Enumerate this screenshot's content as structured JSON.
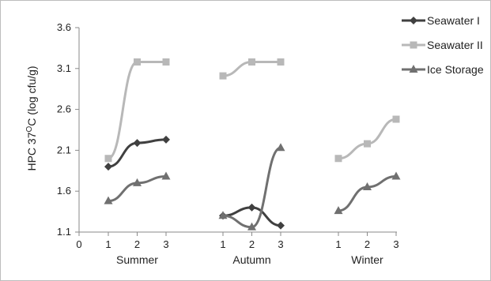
{
  "chart_data": {
    "type": "line",
    "ylabel": "HPC 37",
    "ylabel_sup": "O",
    "ylabel_tail": "C (log cfu/g)",
    "ylim": [
      1.1,
      3.6
    ],
    "y_ticks": [
      "3.6",
      "3.1",
      "2.6",
      "2.1",
      "1.6",
      "1.1"
    ],
    "x_zero_label": "0",
    "groups": [
      {
        "name": "Summer",
        "ticks": [
          "1",
          "2",
          "3"
        ]
      },
      {
        "name": "Autumn",
        "ticks": [
          "1",
          "2",
          "3"
        ]
      },
      {
        "name": "Winter",
        "ticks": [
          "1",
          "2",
          "3"
        ]
      }
    ],
    "legend_position": "top-right",
    "grid": false,
    "series": [
      {
        "name": "Seawater I",
        "color": "#404040",
        "marker": "diamond",
        "groups": [
          [
            1.9,
            2.19,
            2.23
          ],
          [
            1.3,
            1.4,
            1.18
          ],
          []
        ]
      },
      {
        "name": "Seawater II",
        "color": "#b8b8b8",
        "marker": "square",
        "groups": [
          [
            2.0,
            3.18,
            3.18
          ],
          [
            3.01,
            3.18,
            3.18
          ],
          [
            2.0,
            2.18,
            2.48
          ]
        ]
      },
      {
        "name": "Ice Storage",
        "color": "#707070",
        "marker": "triangle",
        "groups": [
          [
            1.48,
            1.7,
            1.78
          ],
          [
            1.3,
            1.16,
            2.13
          ],
          [
            1.36,
            1.65,
            1.78
          ]
        ]
      }
    ]
  }
}
